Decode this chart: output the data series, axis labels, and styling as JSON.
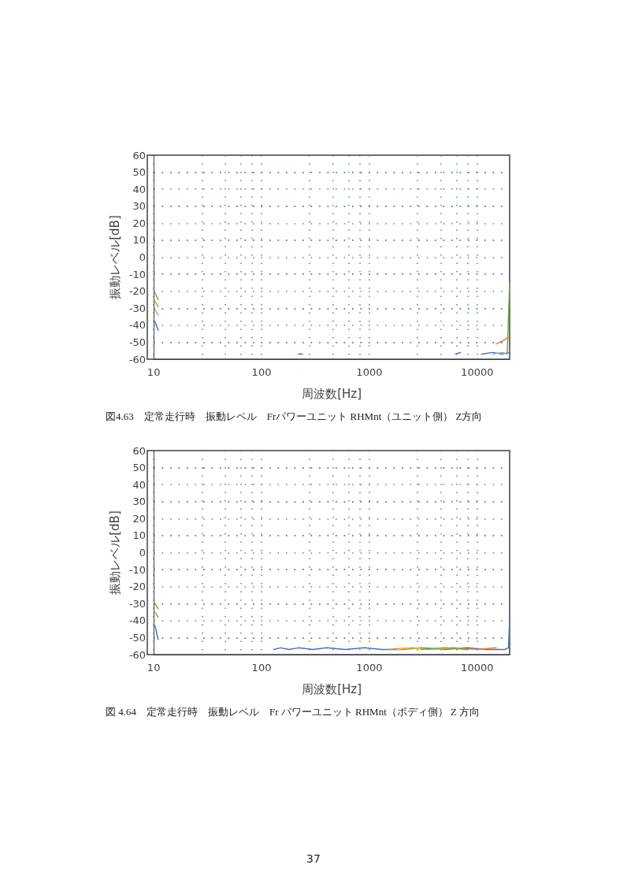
{
  "chart_data": [
    {
      "type": "line",
      "title": "図4.63　定常走行時　振動レベル　Frパワーユニット RHMnt（ユニット側） Z方向",
      "xlabel": "周波数[Hz]",
      "ylabel": "振動レベル[dB]",
      "log": "x",
      "grid": true,
      "marker": "none",
      "line_style": "solid",
      "xlim": [
        10,
        20000
      ],
      "xticks": [
        10,
        100,
        1000,
        10000
      ],
      "ylim": [
        -60,
        60
      ],
      "yticks": [
        -60,
        -50,
        -40,
        -30,
        -20,
        -10,
        0,
        10,
        20,
        30,
        40,
        50,
        60
      ],
      "series": [
        {
          "color": "#4472c4",
          "x": [
            10.3,
            11,
            12,
            220,
            240,
            1000,
            6300,
            7000,
            8000,
            11000,
            14000,
            17000,
            20000
          ],
          "values": [
            -38,
            -43,
            null,
            -57,
            -57,
            null,
            -57,
            -56,
            null,
            -57,
            -56,
            -57,
            -56
          ]
        },
        {
          "color": "#a5a5a5",
          "x": [
            10.3,
            11,
            12,
            14000,
            17000,
            19000
          ],
          "values": [
            -31,
            -34,
            null,
            -57,
            -56,
            -57
          ]
        },
        {
          "color": "#70ad47",
          "x": [
            10.3,
            11,
            12,
            19000,
            20000
          ],
          "values": [
            -21,
            -25,
            null,
            -56,
            -15
          ]
        },
        {
          "color": "#ed7d31",
          "x": [
            10.3,
            11
          ],
          "values": [
            -26,
            -29
          ]
        },
        {
          "color": "#ed7d31",
          "x": [
            15000,
            17500,
            19500
          ],
          "values": [
            -51,
            -49,
            -47
          ]
        }
      ]
    },
    {
      "type": "line",
      "title": "図 4.64　定常走行時　振動レベル　Fr パワーユニット RHMnt（ボディ側） Z 方向",
      "xlabel": "周波数[Hz]",
      "ylabel": "振動レベル[dB]",
      "log": "x",
      "grid": true,
      "marker": "none",
      "line_style": "solid",
      "xlim": [
        10,
        20000
      ],
      "xticks": [
        10,
        100,
        1000,
        10000
      ],
      "ylim": [
        -60,
        60
      ],
      "yticks": [
        -60,
        -50,
        -40,
        -30,
        -20,
        -10,
        0,
        10,
        20,
        30,
        40,
        50,
        60
      ],
      "annotations": [
        "37"
      ],
      "series": [
        {
          "color": "#4472c4",
          "x": [
            10.3,
            10.7,
            11,
            12,
            130,
            150,
            180,
            220,
            300,
            400,
            600,
            900,
            1300,
            2000,
            3000,
            5000,
            8000,
            12000,
            18000,
            19500,
            20000
          ],
          "values": [
            -43,
            -48,
            -51,
            null,
            -57,
            -56,
            -57,
            -56,
            -57,
            -56,
            -57,
            -56,
            -57,
            -57,
            -56,
            -57,
            -56,
            -57,
            -57,
            -56,
            -40
          ]
        },
        {
          "color": "#ed7d31",
          "x": [
            10.3,
            11,
            12,
            1500,
            2500,
            4000,
            6000,
            10000,
            15000
          ],
          "values": [
            -35,
            -38,
            null,
            -57,
            -56,
            -57,
            -56,
            -57,
            -56
          ]
        },
        {
          "color": "#ffc000",
          "x": [
            1800,
            2500,
            4000,
            6000
          ],
          "values": [
            -57,
            -56,
            -57,
            -56
          ]
        },
        {
          "color": "#70ad47",
          "x": [
            10.3,
            11,
            12,
            3000,
            5000,
            8000
          ],
          "values": [
            -30,
            -33,
            null,
            -57,
            -56,
            -57
          ]
        }
      ]
    }
  ]
}
